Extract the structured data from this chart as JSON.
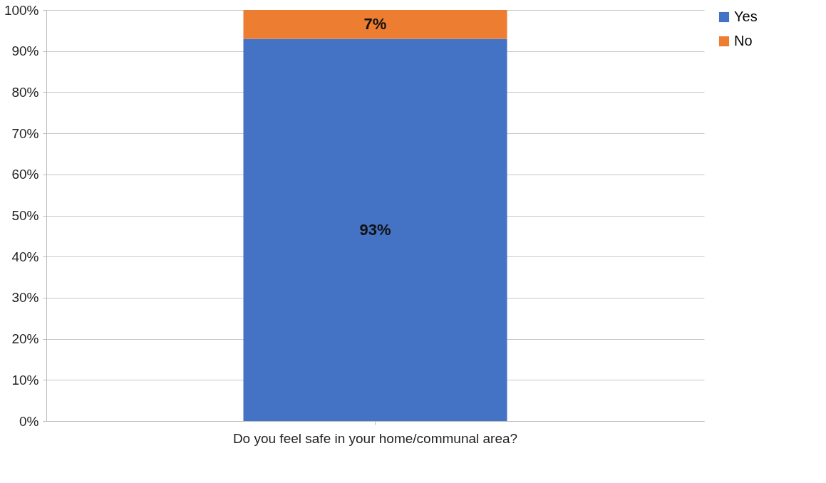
{
  "chart_data": {
    "type": "bar",
    "stacked": true,
    "categories": [
      "Do you feel safe in your home/communal area?"
    ],
    "series": [
      {
        "name": "Yes",
        "color": "#4472c4",
        "values": [
          93
        ],
        "value_labels": [
          "93%"
        ]
      },
      {
        "name": "No",
        "color": "#ed7d31",
        "values": [
          7
        ],
        "value_labels": [
          "7%"
        ]
      }
    ],
    "ylim": [
      0,
      100
    ],
    "yticks": [
      {
        "value": 0,
        "label": "0%"
      },
      {
        "value": 10,
        "label": "10%"
      },
      {
        "value": 20,
        "label": "20%"
      },
      {
        "value": 30,
        "label": "30%"
      },
      {
        "value": 40,
        "label": "40%"
      },
      {
        "value": 50,
        "label": "50%"
      },
      {
        "value": 60,
        "label": "60%"
      },
      {
        "value": 70,
        "label": "70%"
      },
      {
        "value": 80,
        "label": "80%"
      },
      {
        "value": 90,
        "label": "90%"
      },
      {
        "value": 100,
        "label": "100%"
      }
    ],
    "grid": "y",
    "legend": "right"
  }
}
